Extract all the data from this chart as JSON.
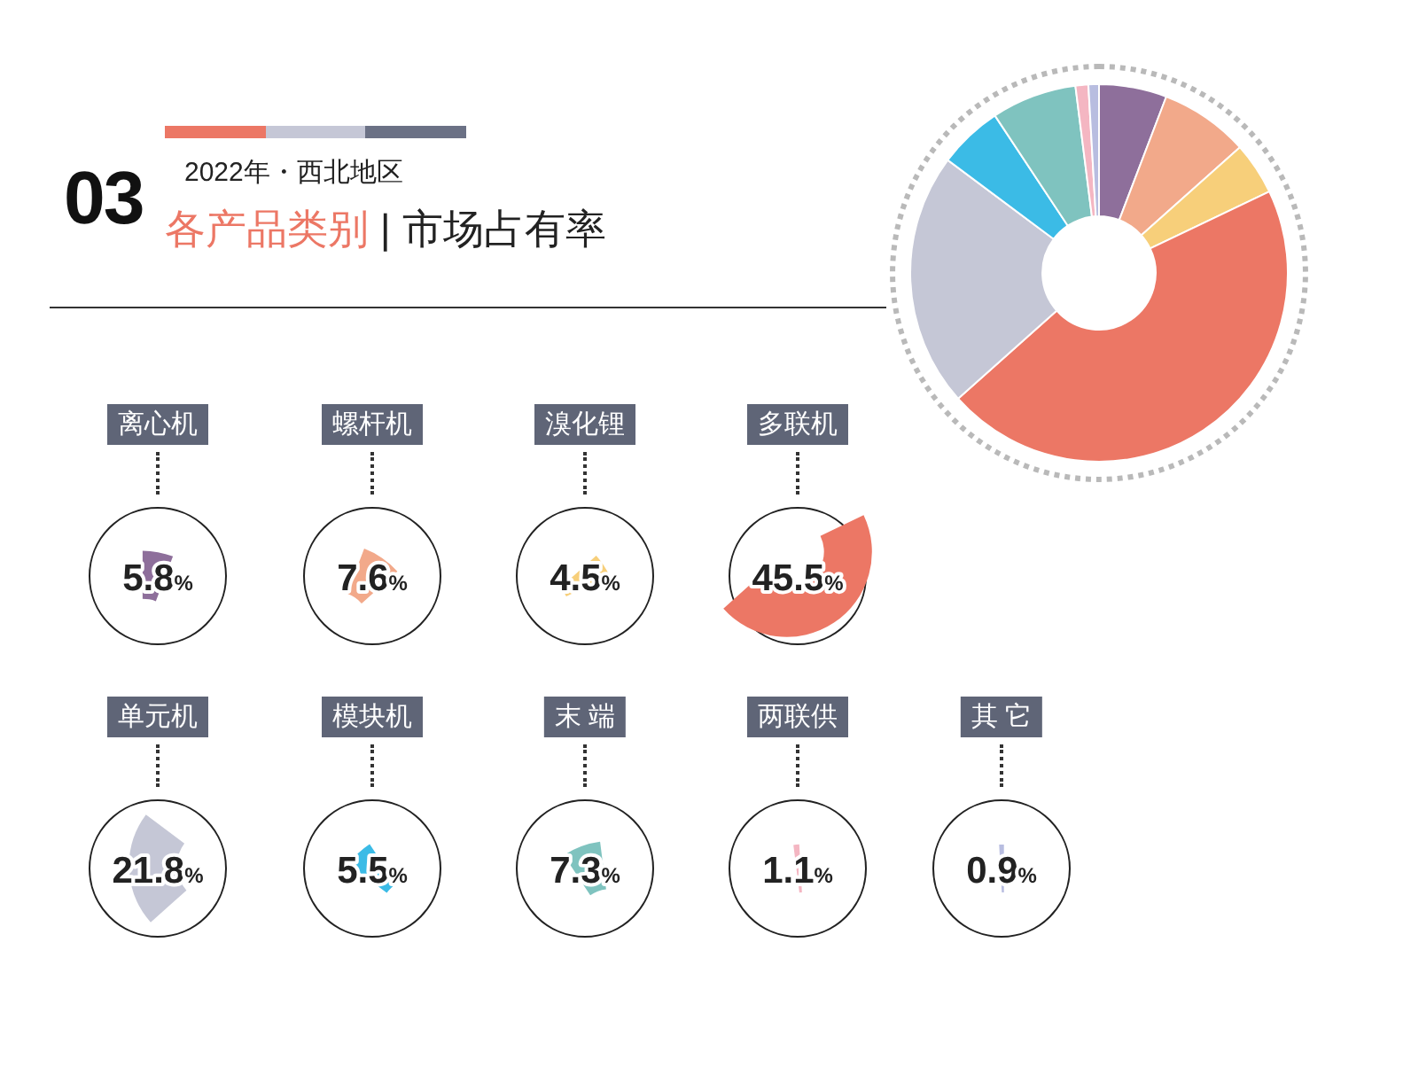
{
  "chart_data": [
    {
      "type": "other",
      "title": "各产品类别 | 市场占有率",
      "subtitle": "2022年・西北地区",
      "annotations": [
        "03"
      ]
    },
    {
      "type": "donut",
      "categories": [
        null,
        null,
        null,
        null,
        null,
        null,
        null,
        null,
        null
      ],
      "values": [
        5.8,
        7.6,
        4.5,
        45.5,
        21.8,
        5.5,
        7.3,
        1.1,
        0.9
      ],
      "colors": [
        "#8e6f9b",
        "#f2a98a",
        "#f7cf7a",
        "#ec7765",
        "#c5c7d6",
        "#3bbbe6",
        "#7fc3bf",
        "#f4b6c2",
        "#b8bde0"
      ]
    },
    {
      "type": "pie",
      "title": "离心机",
      "categories": [
        null
      ],
      "values": [
        5.8
      ],
      "colors": [
        "#8e6f9b"
      ],
      "value_labels": [
        "5.8%"
      ]
    },
    {
      "type": "pie",
      "title": "螺杆机",
      "categories": [
        null
      ],
      "values": [
        7.6
      ],
      "colors": [
        "#f2a98a"
      ],
      "value_labels": [
        "7.6%"
      ]
    },
    {
      "type": "pie",
      "title": "溴化锂",
      "categories": [
        null
      ],
      "values": [
        4.5
      ],
      "colors": [
        "#f7cf7a"
      ],
      "value_labels": [
        "4.5%"
      ]
    },
    {
      "type": "pie",
      "title": "多联机",
      "categories": [
        null
      ],
      "values": [
        45.5
      ],
      "colors": [
        "#ec7765"
      ],
      "value_labels": [
        "45.5%"
      ]
    },
    {
      "type": "pie",
      "title": "单元机",
      "categories": [
        null
      ],
      "values": [
        21.8
      ],
      "colors": [
        "#c5c7d6"
      ],
      "value_labels": [
        "21.8%"
      ]
    },
    {
      "type": "pie",
      "title": "模块机",
      "categories": [
        null
      ],
      "values": [
        5.5
      ],
      "colors": [
        "#3bbbe6"
      ],
      "value_labels": [
        "5.5%"
      ]
    },
    {
      "type": "pie",
      "title": "末 端",
      "categories": [
        null
      ],
      "values": [
        7.3
      ],
      "colors": [
        "#7fc3bf"
      ],
      "value_labels": [
        "7.3%"
      ]
    },
    {
      "type": "pie",
      "title": "两联供",
      "categories": [
        null
      ],
      "values": [
        1.1
      ],
      "colors": [
        "#f4b6c2"
      ],
      "value_labels": [
        "1.1%"
      ]
    },
    {
      "type": "pie",
      "title": "其 它",
      "categories": [
        null
      ],
      "values": [
        0.9
      ],
      "colors": [
        "#b8bde0"
      ],
      "value_labels": [
        "0.9%"
      ]
    }
  ]
}
